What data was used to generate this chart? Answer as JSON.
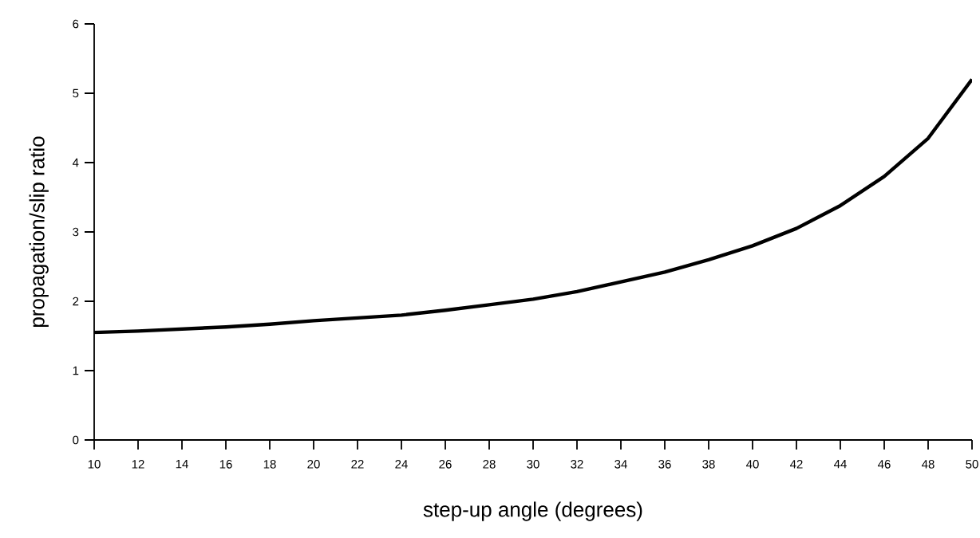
{
  "chart_data": {
    "type": "line",
    "xlabel": "step-up angle (degrees)",
    "ylabel": "propagation/slip ratio",
    "x": [
      10,
      12,
      14,
      16,
      18,
      20,
      22,
      24,
      26,
      28,
      30,
      32,
      34,
      36,
      38,
      40,
      42,
      44,
      46,
      48,
      50
    ],
    "series": [
      {
        "color": "#000000",
        "values": [
          1.55,
          1.57,
          1.6,
          1.63,
          1.67,
          1.72,
          1.76,
          1.8,
          1.87,
          1.95,
          2.03,
          2.14,
          2.28,
          2.42,
          2.6,
          2.8,
          3.05,
          3.38,
          3.8,
          4.35,
          5.2
        ]
      }
    ],
    "xlim": [
      10,
      50
    ],
    "ylim": [
      0,
      6
    ],
    "xticks": [
      10,
      12,
      14,
      16,
      18,
      20,
      22,
      24,
      26,
      28,
      30,
      32,
      34,
      36,
      38,
      40,
      42,
      44,
      46,
      48,
      50
    ],
    "yticks": [
      0,
      1,
      2,
      3,
      4,
      5,
      6
    ],
    "grid": false,
    "legend": false,
    "marker": "none",
    "line_style": "solid"
  }
}
